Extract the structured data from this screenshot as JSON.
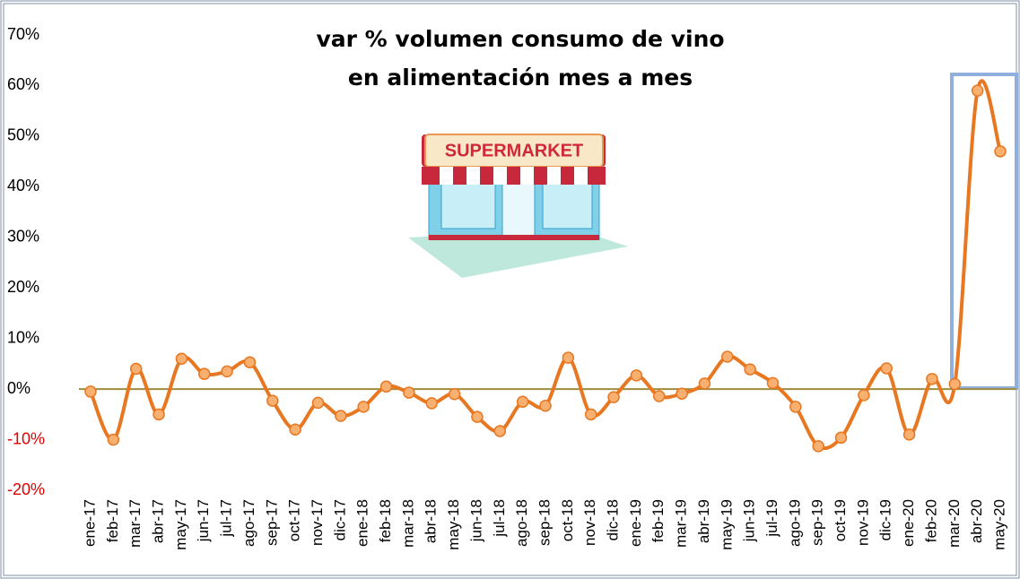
{
  "chart_data": {
    "type": "line",
    "title": [
      "var % volumen consumo de vino",
      "en alimentación mes a mes"
    ],
    "annotations": [
      "SUPERMARKET"
    ],
    "categories": [
      "ene-17",
      "feb-17",
      "mar-17",
      "abr-17",
      "may-17",
      "jun-17",
      "jul-17",
      "ago-17",
      "sep-17",
      "oct-17",
      "nov-17",
      "dic-17",
      "ene-18",
      "feb-18",
      "mar-18",
      "abr-18",
      "may-18",
      "jun-18",
      "jul-18",
      "ago-18",
      "sep-18",
      "oct-18",
      "nov-18",
      "dic-18",
      "ene-19",
      "feb-19",
      "mar-19",
      "abr-19",
      "may-19",
      "jun-19",
      "jul-19",
      "ago-19",
      "sep-19",
      "oct-19",
      "nov-19",
      "dic-19",
      "ene-20",
      "feb-20",
      "mar-20",
      "abr-20",
      "may-20"
    ],
    "series": [
      {
        "color": "#e87722",
        "marker_color": "#f8b070",
        "values": [
          -0.5,
          -10,
          4,
          -5,
          6,
          3,
          3.5,
          5.3,
          -2.3,
          -8,
          -2.7,
          -5.3,
          -3.5,
          0.5,
          -0.7,
          -2.8,
          -1,
          -5.5,
          -8.3,
          -2.5,
          -3.3,
          6.2,
          -5,
          -1.6,
          2.7,
          -1.4,
          -0.9,
          1.1,
          6.4,
          3.9,
          1.2,
          -3.5,
          -11.3,
          -9.6,
          -1.2,
          4.1,
          -9,
          2,
          1,
          59,
          47
        ]
      }
    ],
    "ylim": [
      -20,
      70
    ],
    "yticks": [
      {
        "value": -20,
        "label": "-20%"
      },
      {
        "value": -10,
        "label": "-10%"
      },
      {
        "value": 0,
        "label": "0%"
      },
      {
        "value": 10,
        "label": "10%"
      },
      {
        "value": 20,
        "label": "20%"
      },
      {
        "value": 30,
        "label": "30%"
      },
      {
        "value": 40,
        "label": "40%"
      },
      {
        "value": 50,
        "label": "50%"
      },
      {
        "value": 60,
        "label": "60%"
      },
      {
        "value": 70,
        "label": "70%"
      }
    ],
    "negative_label_color": "#e00000",
    "zero_line_color": "#a08c3c",
    "grid": false
  }
}
